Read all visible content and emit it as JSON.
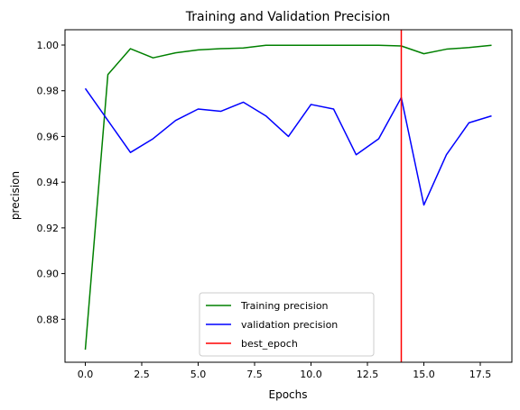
{
  "chart_data": {
    "type": "line",
    "title": "Training and Validation Precision",
    "xlabel": "Epochs",
    "ylabel": "precision",
    "xlim": [
      -0.9,
      18.9
    ],
    "ylim": [
      0.8612,
      1.0067
    ],
    "x_ticks": [
      0.0,
      2.5,
      5.0,
      7.5,
      10.0,
      12.5,
      15.0,
      17.5
    ],
    "x_tick_labels": [
      "0.0",
      "2.5",
      "5.0",
      "7.5",
      "10.0",
      "12.5",
      "15.0",
      "17.5"
    ],
    "y_ticks": [
      0.88,
      0.9,
      0.92,
      0.94,
      0.96,
      0.98,
      1.0
    ],
    "y_tick_labels": [
      "0.88",
      "0.90",
      "0.92",
      "0.94",
      "0.96",
      "0.98",
      "1.00"
    ],
    "grid": false,
    "legend_position": "lower-center",
    "x": [
      0,
      1,
      2,
      3,
      4,
      5,
      6,
      7,
      8,
      9,
      10,
      11,
      12,
      13,
      14,
      15,
      16,
      17,
      18
    ],
    "series": [
      {
        "name": "Training precision",
        "color": "#008000",
        "values": [
          0.8667,
          0.9871,
          0.9984,
          0.9944,
          0.9966,
          0.9979,
          0.9984,
          0.9987,
          0.9999,
          0.9999,
          0.9999,
          0.9999,
          0.9999,
          0.9999,
          0.9996,
          0.9962,
          0.9982,
          0.9989,
          0.9999
        ]
      },
      {
        "name": "validation precision",
        "color": "#0000ff",
        "values": [
          0.981,
          0.967,
          0.953,
          0.959,
          0.967,
          0.972,
          0.971,
          0.975,
          0.969,
          0.96,
          0.974,
          0.972,
          0.952,
          0.959,
          0.977,
          0.93,
          0.952,
          0.966,
          0.969
        ]
      }
    ],
    "vline": {
      "name": "best_epoch",
      "x": 14,
      "color": "#ff0000"
    }
  }
}
